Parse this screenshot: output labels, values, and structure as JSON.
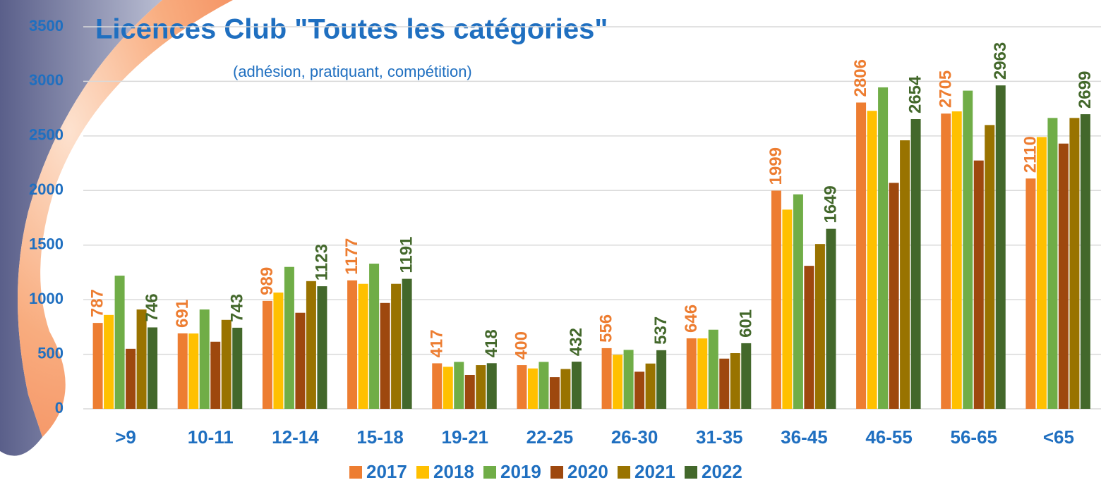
{
  "chart_data": {
    "type": "bar",
    "title": "Licences Club \"Toutes les catégories\"",
    "subtitle": "(adhésion,  pratiquant, compétition)",
    "categories": [
      ">9",
      "10-11",
      "12-14",
      "15-18",
      "19-21",
      "22-25",
      "26-30",
      "31-35",
      "36-45",
      "46-55",
      "56-65",
      "<65"
    ],
    "series": [
      {
        "name": "2017",
        "color": "#ed7d31",
        "show_labels": true,
        "values": [
          787,
          691,
          989,
          1177,
          417,
          400,
          556,
          646,
          1999,
          2806,
          2705,
          2110
        ]
      },
      {
        "name": "2018",
        "color": "#ffc000",
        "show_labels": false,
        "values": [
          860,
          690,
          1065,
          1145,
          385,
          370,
          495,
          645,
          1825,
          2730,
          2725,
          2490
        ]
      },
      {
        "name": "2019",
        "color": "#70ad47",
        "show_labels": false,
        "values": [
          1220,
          910,
          1300,
          1330,
          430,
          430,
          540,
          725,
          1965,
          2945,
          2915,
          2665
        ]
      },
      {
        "name": "2020",
        "color": "#9e480e",
        "show_labels": false,
        "values": [
          550,
          615,
          880,
          970,
          310,
          290,
          340,
          460,
          1310,
          2070,
          2275,
          2430
        ]
      },
      {
        "name": "2021",
        "color": "#997300",
        "show_labels": false,
        "values": [
          910,
          815,
          1170,
          1145,
          400,
          365,
          415,
          510,
          1510,
          2460,
          2600,
          2665
        ]
      },
      {
        "name": "2022",
        "color": "#43682b",
        "show_labels": true,
        "values": [
          746,
          743,
          1123,
          1191,
          418,
          432,
          537,
          601,
          1649,
          2654,
          2963,
          2699
        ]
      }
    ],
    "ylim": [
      0,
      3500
    ],
    "yticks": [
      0,
      500,
      1000,
      1500,
      2000,
      2500,
      3000,
      3500
    ],
    "grid": true,
    "legend": "bottom"
  }
}
